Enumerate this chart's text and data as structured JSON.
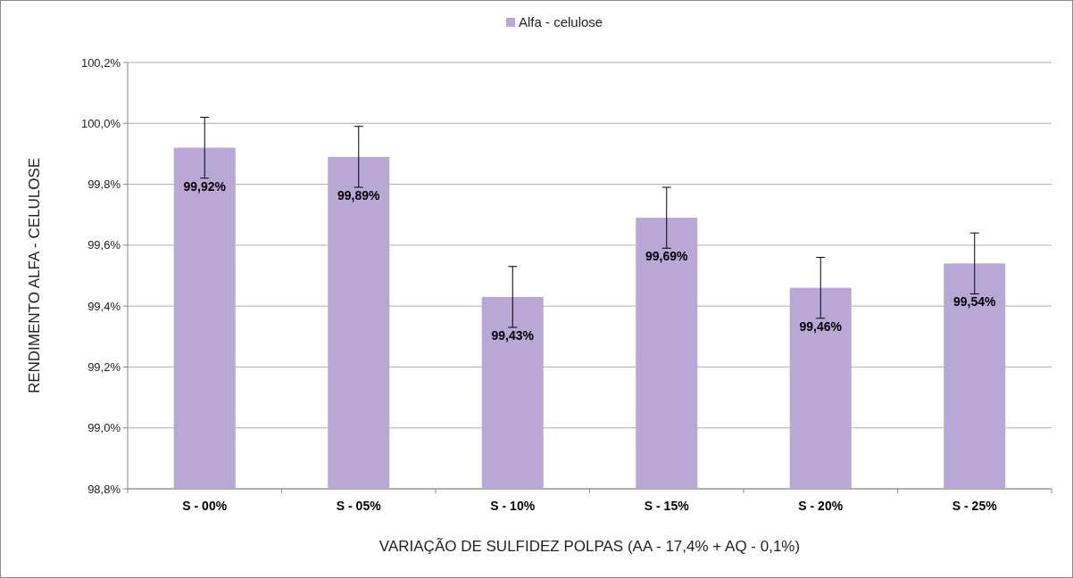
{
  "chart_data": {
    "type": "bar",
    "xlabel": "VARIAÇÃO DE SULFIDEZ POLPAS (AA - 17,4% + AQ - 0,1%)",
    "ylabel": "RENDIMENTO ALFA - CELULOSE",
    "categories": [
      "S - 00%",
      "S - 05%",
      "S - 10%",
      "S - 15%",
      "S - 20%",
      "S - 25%"
    ],
    "series": [
      {
        "name": "Alfa - celulose",
        "color": "#b9a7d6",
        "values": [
          99.92,
          99.89,
          99.43,
          99.69,
          99.46,
          99.54
        ],
        "errors": [
          0.1,
          0.1,
          0.1,
          0.1,
          0.1,
          0.1
        ],
        "value_labels": [
          "99,92%",
          "99,89%",
          "99,43%",
          "99,69%",
          "99,46%",
          "99,54%"
        ]
      }
    ],
    "ylim": [
      98.8,
      100.2
    ],
    "yticks": [
      {
        "value": 98.8,
        "label": "98,8%"
      },
      {
        "value": 99.0,
        "label": "99,0%"
      },
      {
        "value": 99.2,
        "label": "99,2%"
      },
      {
        "value": 99.4,
        "label": "99,4%"
      },
      {
        "value": 99.6,
        "label": "99,6%"
      },
      {
        "value": 99.8,
        "label": "99,8%"
      },
      {
        "value": 100.0,
        "label": "100,0%"
      },
      {
        "value": 100.2,
        "label": "100,2%"
      }
    ],
    "grid": "y",
    "legend": "top"
  }
}
